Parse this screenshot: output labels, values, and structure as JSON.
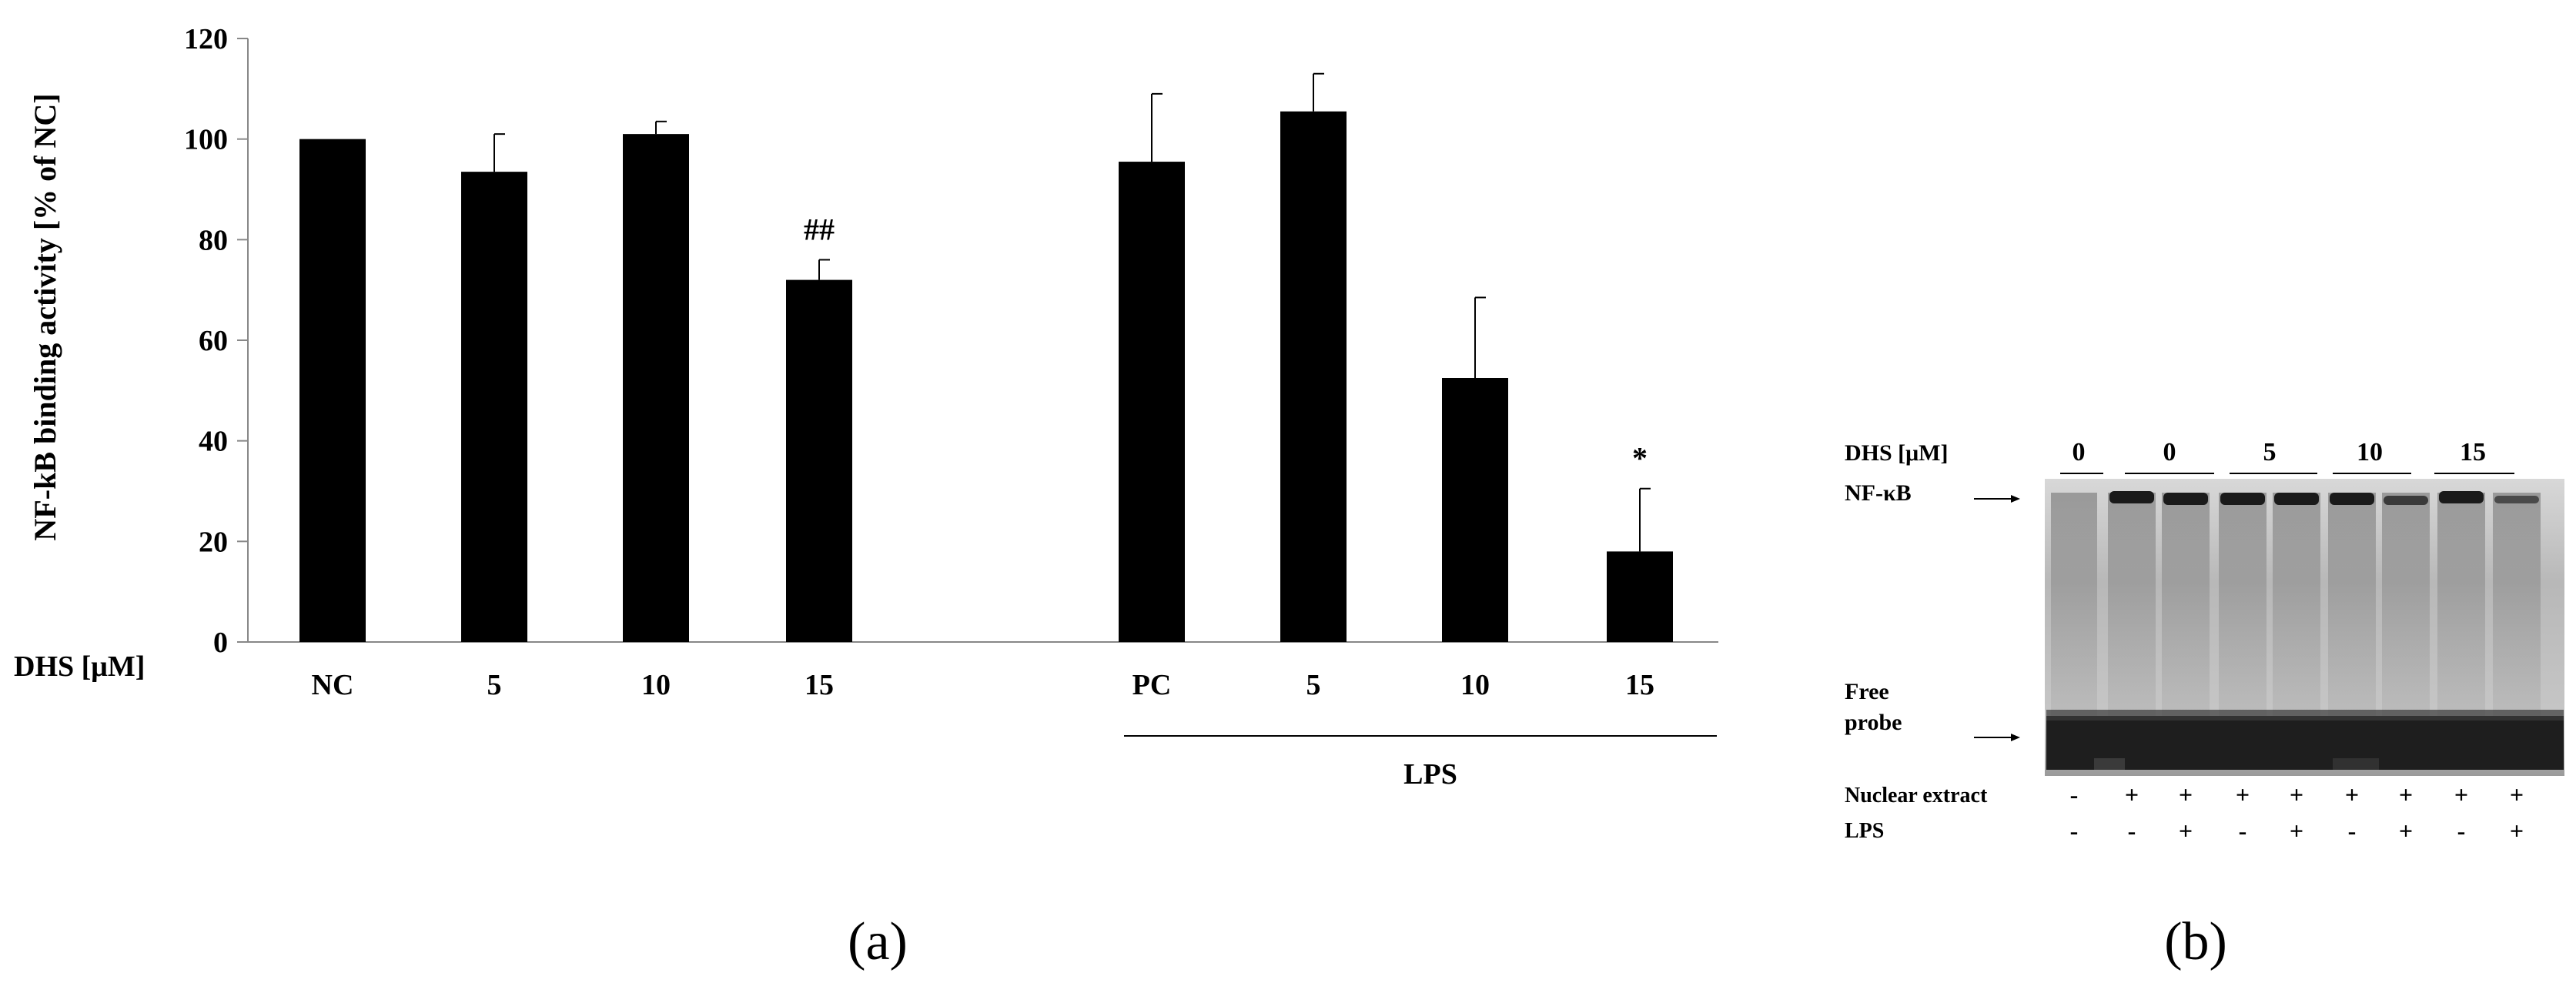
{
  "panel_a": {
    "label": "(a)",
    "chart_data": {
      "type": "bar",
      "ylabel": "NF-kB binding activity [% of NC]",
      "xlabel": "DHS [μM]",
      "ylim": [
        0,
        120
      ],
      "yticks": [
        "0",
        "20",
        "40",
        "60",
        "80",
        "100",
        "120"
      ],
      "bar_color": "#000000",
      "categories": [
        "NC",
        "5",
        "10",
        "15",
        "PC",
        "5",
        "10",
        "15"
      ],
      "values": [
        100,
        93.5,
        101,
        72,
        95.5,
        105.5,
        52.5,
        18
      ],
      "errors": [
        0,
        7.5,
        2.5,
        4,
        13.5,
        7.5,
        16,
        12.5
      ],
      "annotations": [
        "",
        "",
        "",
        "##",
        "",
        "",
        "",
        "*"
      ],
      "groups": [
        {
          "label": "",
          "categories": [
            0,
            1,
            2,
            3
          ]
        },
        {
          "label": "LPS",
          "categories": [
            4,
            5,
            6,
            7
          ]
        }
      ],
      "grid": false
    }
  },
  "panel_b": {
    "label": "(b)",
    "dhs_label": "DHS [μM]",
    "dose_groups": [
      "0",
      "0",
      "5",
      "10",
      "15"
    ],
    "band_nfkb": "NF-κB",
    "band_free_probe_line1": "Free",
    "band_free_probe_line2": "probe",
    "row_nuclear_extract": {
      "label": "Nuclear extract",
      "signs": [
        "-",
        "+",
        "+",
        "+",
        "+",
        "+",
        "+",
        "+",
        "+"
      ]
    },
    "row_lps": {
      "label": "LPS",
      "signs": [
        "-",
        "-",
        "+",
        "-",
        "+",
        "-",
        "+",
        "-",
        "+"
      ]
    }
  }
}
